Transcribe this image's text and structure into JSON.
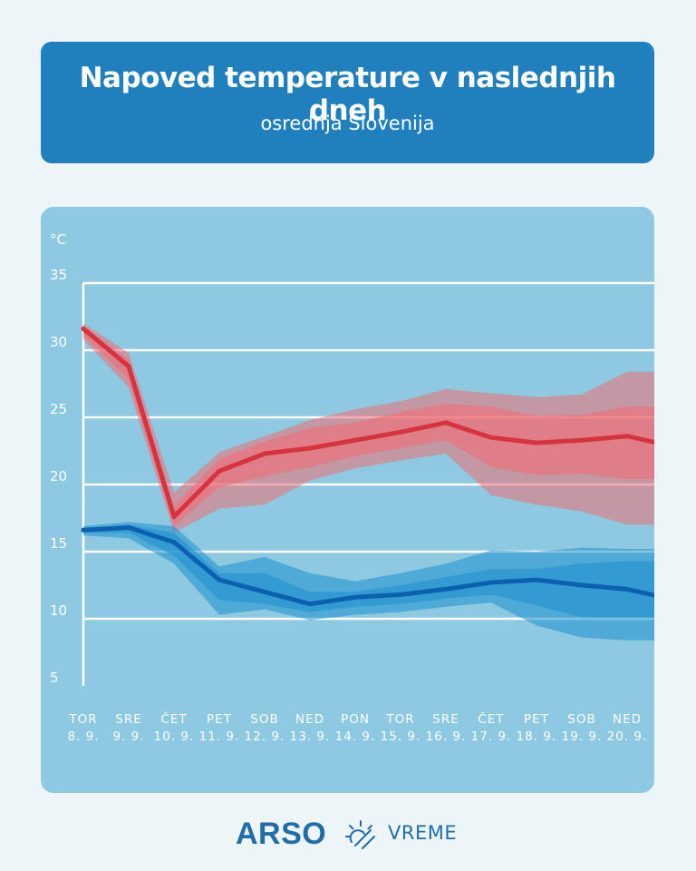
{
  "header": {
    "title": "Napoved temperature v naslednjih dneh",
    "subtitle": "osrednja Slovenija"
  },
  "chart_data": {
    "type": "line",
    "unit": "°C",
    "ylim": [
      5,
      35
    ],
    "yticks": [
      5,
      10,
      15,
      20,
      25,
      30,
      35
    ],
    "grid": true,
    "categories": [
      {
        "day": "TOR",
        "date": "8. 9."
      },
      {
        "day": "SRE",
        "date": "9. 9."
      },
      {
        "day": "ČET",
        "date": "10. 9."
      },
      {
        "day": "PET",
        "date": "11. 9."
      },
      {
        "day": "SOB",
        "date": "12. 9."
      },
      {
        "day": "NED",
        "date": "13. 9."
      },
      {
        "day": "PON",
        "date": "14. 9."
      },
      {
        "day": "TOR",
        "date": "15. 9."
      },
      {
        "day": "SRE",
        "date": "16. 9."
      },
      {
        "day": "ČET",
        "date": "17. 9."
      },
      {
        "day": "PET",
        "date": "18. 9."
      },
      {
        "day": "SOB",
        "date": "19. 9."
      },
      {
        "day": "NED",
        "date": "20. 9."
      }
    ],
    "series": [
      {
        "color": "#d7333f",
        "band_color": "#f26d74",
        "values": [
          31.6,
          28.8,
          17.6,
          21.0,
          22.3,
          22.7,
          23.3,
          23.9,
          24.6,
          23.5,
          23.1,
          23.3,
          23.6
        ],
        "inner_lower": [
          31.1,
          27.8,
          16.9,
          19.8,
          20.6,
          21.3,
          22.1,
          22.7,
          23.3,
          21.3,
          20.7,
          20.8,
          20.4
        ],
        "inner_upper": [
          31.8,
          29.3,
          18.4,
          21.9,
          23.2,
          24.2,
          24.6,
          25.4,
          26.0,
          25.8,
          25.1,
          25.2,
          25.8
        ],
        "outer_lower": [
          30.8,
          27.2,
          16.4,
          18.2,
          18.5,
          20.3,
          21.2,
          21.8,
          22.3,
          19.2,
          18.5,
          18.0,
          17.0
        ],
        "outer_upper": [
          32.0,
          29.8,
          19.4,
          22.4,
          23.6,
          24.8,
          25.6,
          26.2,
          27.1,
          26.8,
          26.5,
          26.7,
          28.4
        ]
      },
      {
        "color": "#0c60b0",
        "band_color": "#1f8fcf",
        "values": [
          16.6,
          16.8,
          15.7,
          12.9,
          12.0,
          11.1,
          11.6,
          11.8,
          12.2,
          12.7,
          12.9,
          12.5,
          12.2
        ],
        "inner_lower": [
          16.4,
          16.4,
          14.7,
          11.4,
          11.1,
          10.5,
          10.9,
          11.1,
          11.5,
          11.8,
          11.0,
          10.1,
          10.1
        ],
        "inner_upper": [
          16.7,
          17.0,
          16.4,
          13.4,
          13.4,
          12.0,
          12.0,
          12.5,
          13.1,
          13.7,
          13.7,
          14.1,
          14.3
        ],
        "outer_lower": [
          16.2,
          16.0,
          14.1,
          10.3,
          10.7,
          9.9,
          10.3,
          10.5,
          10.9,
          11.2,
          9.5,
          8.6,
          8.4
        ],
        "outer_upper": [
          16.9,
          17.2,
          16.9,
          13.9,
          14.6,
          13.4,
          12.8,
          13.4,
          14.1,
          15.1,
          15.0,
          15.3,
          15.2
        ]
      }
    ]
  },
  "footer": {
    "brand": "ARSO",
    "section": "VREME",
    "icon": "sun-cloud-icon"
  }
}
